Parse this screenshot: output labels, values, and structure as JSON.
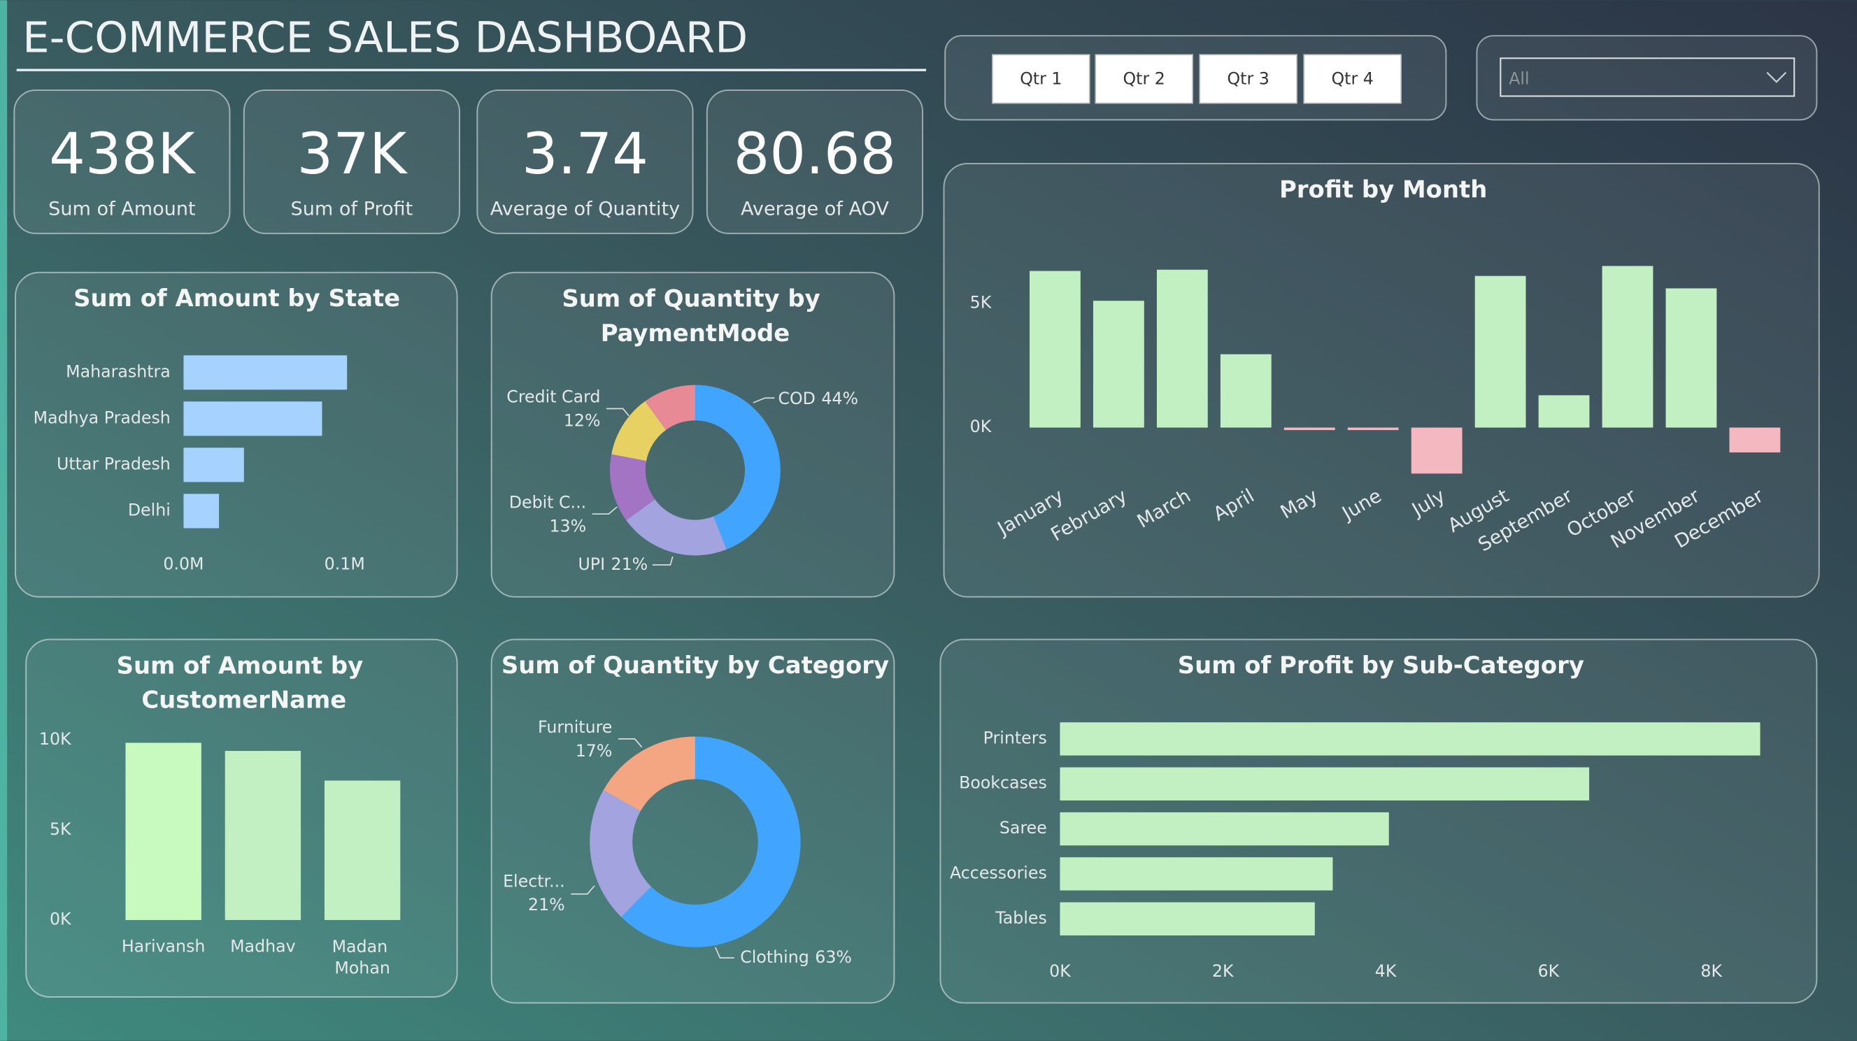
{
  "header": {
    "title": "E-COMMERCE SALES DASHBOARD"
  },
  "kpis": [
    {
      "value": "438K",
      "label": "Sum of Amount"
    },
    {
      "value": "37K",
      "label": "Sum of Profit"
    },
    {
      "value": "3.74",
      "label": "Average of Quantity"
    },
    {
      "value": "80.68",
      "label": "Average of AOV"
    }
  ],
  "slicers": {
    "quarters": [
      "Qtr 1",
      "Qtr 2",
      "Qtr 3",
      "Qtr 4"
    ],
    "dropdown": "All"
  },
  "chart_data": [
    {
      "type": "hbar",
      "title": "Sum of Amount by State",
      "categories": [
        "Maharashtra",
        "Madhya Pradesh",
        "Uttar Pradesh",
        "Delhi"
      ],
      "values": [
        101500,
        86000,
        37500,
        22000
      ],
      "color": "#a6d2ff",
      "xlim": [
        0,
        110000
      ],
      "xticks": [
        {
          "value": 0,
          "label": "0.0M"
        },
        {
          "value": 100000,
          "label": "0.1M"
        }
      ]
    },
    {
      "type": "donut",
      "title": "Sum of Quantity by PaymentMode",
      "categories": [
        "COD",
        "UPI",
        "Debit C...",
        "Credit Card",
        null
      ],
      "values": [
        44,
        21,
        13,
        12,
        10
      ],
      "value_labels": [
        "44%",
        "21%",
        "13%",
        "12%",
        null
      ],
      "colors": [
        "#41a5ff",
        "#a3a3e0",
        "#a474c4",
        "#e8d163",
        "#e88a95"
      ]
    },
    {
      "type": "column",
      "title": "Profit by Month",
      "categories": [
        "January",
        "February",
        "March",
        "April",
        "May",
        "June",
        "July",
        "August",
        "September",
        "October",
        "November",
        "December"
      ],
      "values": [
        6300,
        5100,
        6350,
        2950,
        -100,
        -100,
        -1850,
        6100,
        1300,
        6500,
        5600,
        -1000
      ],
      "color": "#c2f0c2",
      "negative_color": "#f4b8c0",
      "ylim": [
        -2000,
        7500
      ],
      "yticks": [
        {
          "value": 0,
          "label": "0K"
        },
        {
          "value": 5000,
          "label": "5K"
        }
      ]
    },
    {
      "type": "column",
      "title": "Sum of Amount by CustomerName",
      "categories": [
        "Harivansh",
        "Madhav",
        "Madan Mohan"
      ],
      "values": [
        9850,
        9400,
        7750
      ],
      "colors": [
        "#c8fac0",
        "#c2f0c2",
        "#c2f0c2"
      ],
      "ylim": [
        0,
        10000
      ],
      "yticks": [
        {
          "value": 0,
          "label": "0K"
        },
        {
          "value": 5000,
          "label": "5K"
        },
        {
          "value": 10000,
          "label": "10K"
        }
      ]
    },
    {
      "type": "donut",
      "title": "Sum of Quantity by Category",
      "categories": [
        "Clothing",
        "Electr...",
        "Furniture"
      ],
      "values": [
        63,
        21,
        17
      ],
      "value_labels": [
        "63%",
        "21%",
        "17%"
      ],
      "colors": [
        "#41a5ff",
        "#a3a3e0",
        "#f4a582"
      ]
    },
    {
      "type": "hbar",
      "title": "Sum of Profit by Sub-Category",
      "categories": [
        "Printers",
        "Bookcases",
        "Saree",
        "Accessories",
        "Tables"
      ],
      "values": [
        8600,
        6500,
        4040,
        3350,
        3130
      ],
      "color": "#c2f0c2",
      "xlim": [
        0,
        8800
      ],
      "xticks": [
        {
          "value": 0,
          "label": "0K"
        },
        {
          "value": 2000,
          "label": "2K"
        },
        {
          "value": 4000,
          "label": "4K"
        },
        {
          "value": 6000,
          "label": "6K"
        },
        {
          "value": 8000,
          "label": "8K"
        }
      ]
    }
  ]
}
